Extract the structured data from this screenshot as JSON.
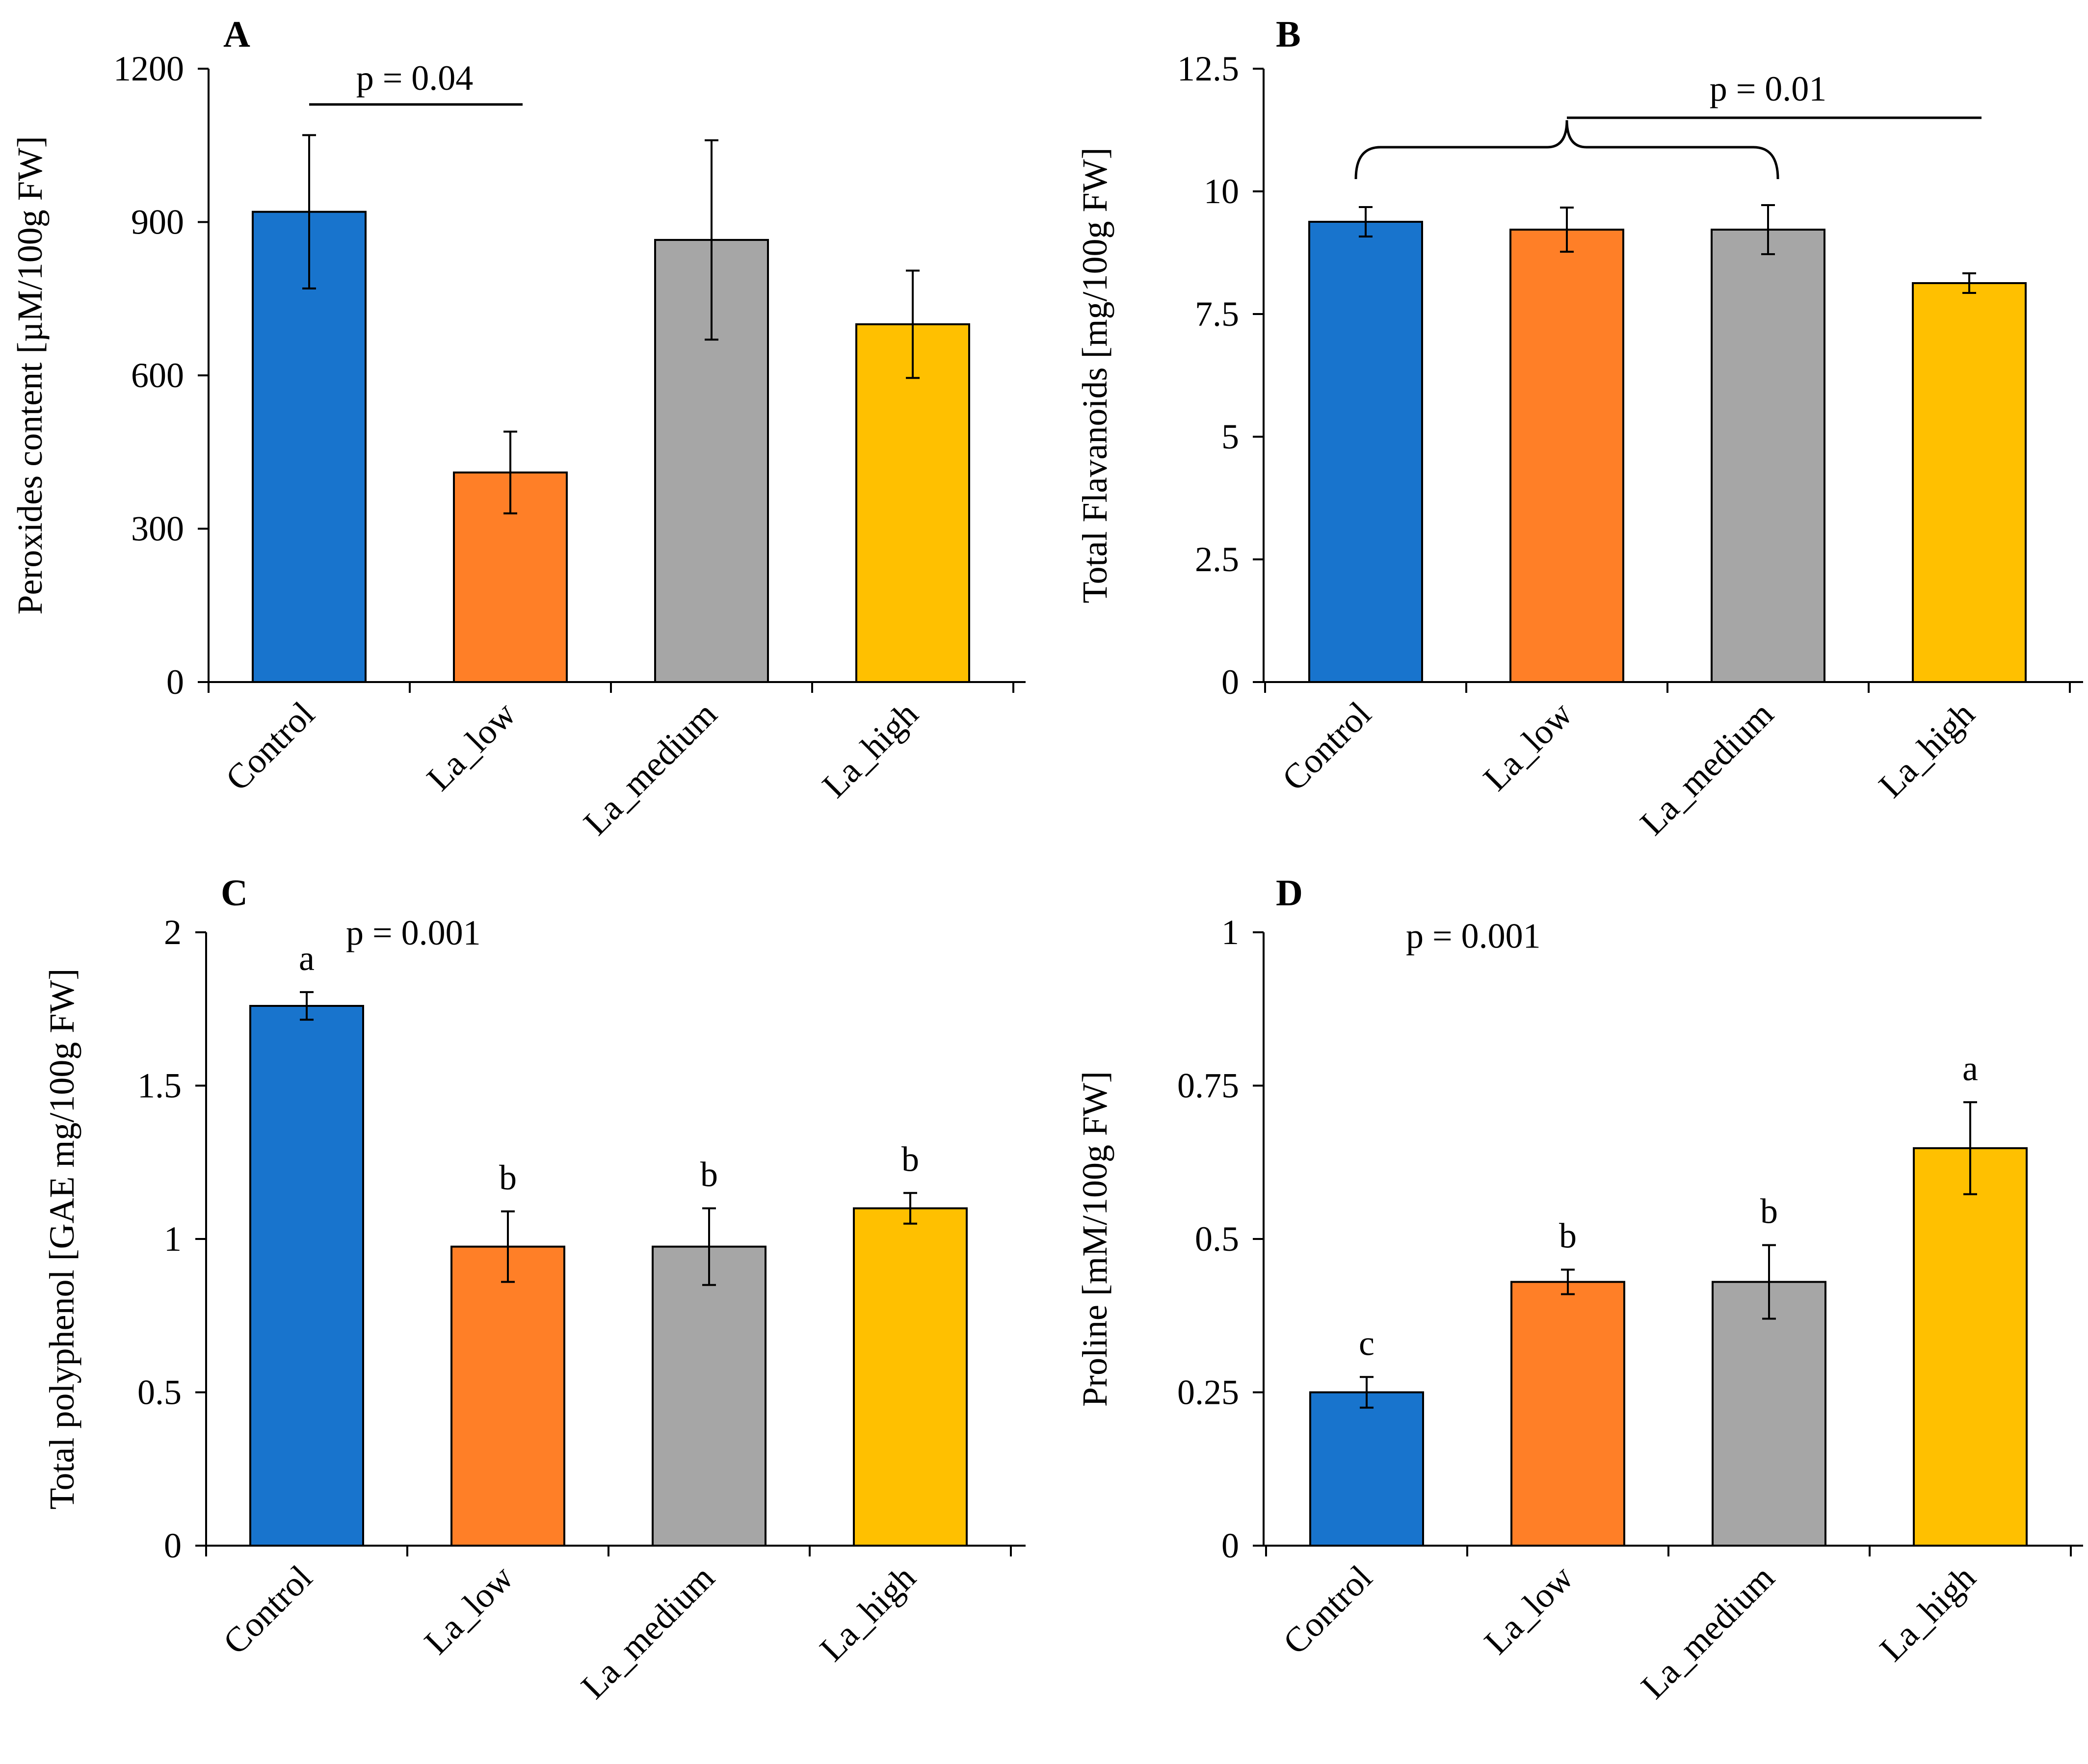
{
  "colors": {
    "Control": "#1874CD",
    "La_low": "#FF7F27",
    "La_medium": "#A6A6A6",
    "La_high": "#FFC000",
    "axis": "#000000"
  },
  "chart_data": [
    {
      "type": "bar",
      "panel": "A",
      "categories": [
        "Control",
        "La_low",
        "La_medium",
        "La_high"
      ],
      "values": [
        920,
        410,
        865,
        700
      ],
      "errors": [
        150,
        80,
        195,
        105
      ],
      "ylabel": "Peroxides content [µM/100g FW]",
      "ylim": [
        0,
        1200
      ],
      "yticks": [
        0,
        300,
        600,
        900,
        1200
      ],
      "ytick_labels": [
        "0",
        "300",
        "600",
        "900",
        "1200"
      ],
      "letters": [],
      "annotations": [
        {
          "text": "p = 0.04",
          "type": "line",
          "from": 0,
          "to": 1,
          "value": 1130
        }
      ]
    },
    {
      "type": "bar",
      "panel": "B",
      "categories": [
        "Control",
        "La_low",
        "La_medium",
        "La_high"
      ],
      "values": [
        9.38,
        9.22,
        9.22,
        8.13
      ],
      "errors": [
        0.3,
        0.45,
        0.5,
        0.2
      ],
      "ylabel": "Total Flavanoids [mg/100g FW]",
      "ylim": [
        0,
        12.5
      ],
      "yticks": [
        0,
        2.5,
        5,
        7.5,
        10,
        12.5
      ],
      "ytick_labels": [
        "0",
        "2.5",
        "5",
        "7.5",
        "10",
        "12.5"
      ],
      "letters": [],
      "annotations": [
        {
          "text": "p = 0.01",
          "type": "brace",
          "from": 0,
          "to": 2,
          "target": 3,
          "value": 11.5
        }
      ]
    },
    {
      "type": "bar",
      "panel": "C",
      "categories": [
        "Control",
        "La_low",
        "La_medium",
        "La_high"
      ],
      "values": [
        1.76,
        0.975,
        0.975,
        1.1
      ],
      "errors": [
        0.045,
        0.115,
        0.125,
        0.05
      ],
      "ylabel": "Total polyphenol [GAE mg/100g FW]",
      "ylim": [
        0,
        2
      ],
      "yticks": [
        0,
        0.5,
        1,
        1.5,
        2
      ],
      "ytick_labels": [
        "0",
        "0.5",
        "1",
        "1.5",
        "2"
      ],
      "letters": [
        "a",
        "b",
        "b",
        "b"
      ],
      "annotations": [
        {
          "text": "p = 0.001",
          "type": "text",
          "value": 1.96
        }
      ]
    },
    {
      "type": "bar",
      "panel": "D",
      "categories": [
        "Control",
        "La_low",
        "La_medium",
        "La_high"
      ],
      "values": [
        0.25,
        0.43,
        0.43,
        0.648
      ],
      "errors": [
        0.025,
        0.02,
        0.06,
        0.075
      ],
      "ylabel": "Proline [mM/100g FW]",
      "ylim": [
        0,
        1
      ],
      "yticks": [
        0,
        0.25,
        0.5,
        0.75,
        1
      ],
      "ytick_labels": [
        "0",
        "0.25",
        "0.5",
        "0.75",
        "1"
      ],
      "letters": [
        "c",
        "b",
        "b",
        "a"
      ],
      "annotations": [
        {
          "text": "p = 0.001",
          "type": "text",
          "value": 0.975
        }
      ]
    }
  ]
}
